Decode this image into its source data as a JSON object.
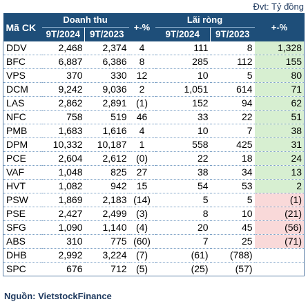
{
  "unit_note": "Đvt: Tỷ đồng",
  "header": {
    "ticker": "Mã CK",
    "revenue_group": "Doanh thu",
    "profit_group": "Lãi ròng",
    "change": "+-%",
    "p1": "9T/2024",
    "p2": "9T/2023"
  },
  "rows": [
    {
      "ticker": "DDV",
      "rev24": "2,468",
      "rev23": "2,374",
      "revchg": "4",
      "np24": "111",
      "np23": "8",
      "npchg": "1,328",
      "tone": "pos"
    },
    {
      "ticker": "BFC",
      "rev24": "6,887",
      "rev23": "6,386",
      "revchg": "8",
      "np24": "285",
      "np23": "112",
      "npchg": "155",
      "tone": "pos"
    },
    {
      "ticker": "VPS",
      "rev24": "370",
      "rev23": "330",
      "revchg": "12",
      "np24": "10",
      "np23": "5",
      "npchg": "80",
      "tone": "pos"
    },
    {
      "ticker": "DCM",
      "rev24": "9,242",
      "rev23": "9,036",
      "revchg": "2",
      "np24": "1,051",
      "np23": "614",
      "npchg": "71",
      "tone": "pos"
    },
    {
      "ticker": "LAS",
      "rev24": "2,862",
      "rev23": "2,891",
      "revchg": "(1)",
      "np24": "152",
      "np23": "94",
      "npchg": "62",
      "tone": "pos"
    },
    {
      "ticker": "NFC",
      "rev24": "758",
      "rev23": "519",
      "revchg": "46",
      "np24": "33",
      "np23": "22",
      "npchg": "51",
      "tone": "pos"
    },
    {
      "ticker": "PMB",
      "rev24": "1,683",
      "rev23": "1,616",
      "revchg": "4",
      "np24": "10",
      "np23": "7",
      "npchg": "38",
      "tone": "pos"
    },
    {
      "ticker": "DPM",
      "rev24": "10,332",
      "rev23": "10,187",
      "revchg": "1",
      "np24": "558",
      "np23": "425",
      "npchg": "31",
      "tone": "pos"
    },
    {
      "ticker": "PCE",
      "rev24": "2,604",
      "rev23": "2,612",
      "revchg": "(0)",
      "np24": "22",
      "np23": "18",
      "npchg": "24",
      "tone": "pos"
    },
    {
      "ticker": "VAF",
      "rev24": "1,048",
      "rev23": "825",
      "revchg": "27",
      "np24": "38",
      "np23": "34",
      "npchg": "13",
      "tone": "pos"
    },
    {
      "ticker": "HVT",
      "rev24": "1,082",
      "rev23": "942",
      "revchg": "15",
      "np24": "54",
      "np23": "53",
      "npchg": "2",
      "tone": "pos"
    },
    {
      "ticker": "PSW",
      "rev24": "1,869",
      "rev23": "2,183",
      "revchg": "(14)",
      "np24": "5",
      "np23": "5",
      "npchg": "(1)",
      "tone": "neg"
    },
    {
      "ticker": "PSE",
      "rev24": "2,427",
      "rev23": "2,499",
      "revchg": "(3)",
      "np24": "8",
      "np23": "10",
      "npchg": "(21)",
      "tone": "neg"
    },
    {
      "ticker": "SFG",
      "rev24": "1,090",
      "rev23": "1,140",
      "revchg": "(4)",
      "np24": "20",
      "np23": "45",
      "npchg": "(56)",
      "tone": "neg"
    },
    {
      "ticker": "ABS",
      "rev24": "310",
      "rev23": "775",
      "revchg": "(60)",
      "np24": "7",
      "np23": "25",
      "npchg": "(71)",
      "tone": "neg"
    },
    {
      "ticker": "DHB",
      "rev24": "2,992",
      "rev23": "3,224",
      "revchg": "(7)",
      "np24": "(61)",
      "np23": "(788)",
      "npchg": "",
      "tone": "none"
    },
    {
      "ticker": "SPC",
      "rev24": "676",
      "rev23": "712",
      "revchg": "(5)",
      "np24": "(25)",
      "np23": "(57)",
      "npchg": "",
      "tone": "none"
    }
  ],
  "colors": {
    "header_bg": "#1e4e79",
    "positive_bg": "#d7efd1",
    "negative_bg": "#f9d9d9"
  },
  "source": "Nguồn: VietstockFinance"
}
